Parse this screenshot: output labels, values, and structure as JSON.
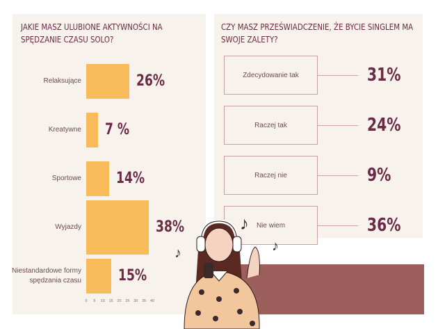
{
  "chart_data": [
    {
      "type": "bar",
      "title": "JAKIE MASZ ULUBIONE AKTYWNOŚCI NA SPĘDZANIE CZASU SOLO?",
      "categories": [
        "Relaksujące",
        "Kreatywne",
        "Sportowe",
        "Wyjazdy",
        "Niestandardowe formy spędzania czasu"
      ],
      "values": [
        26,
        7,
        14,
        38,
        15
      ],
      "value_labels": [
        "26%",
        "7 %",
        "14%",
        "38%",
        "15%"
      ],
      "color": "#f8bb5a",
      "xlim": [
        0,
        40
      ],
      "xticks": [
        0,
        5,
        10,
        15,
        20,
        25,
        30,
        35,
        40
      ]
    },
    {
      "type": "list",
      "title": "CZY MASZ PRZEŚWIADCZENIE, ŻE BYCIE SINGLEM MA SWOJE ZALETY?",
      "categories": [
        "Zdecydowanie tak",
        "Raczej tak",
        "Raczej nie",
        "Nie wiem"
      ],
      "values": [
        31,
        24,
        9,
        36
      ],
      "value_labels": [
        "31%",
        "24%",
        "9%",
        "36%"
      ]
    }
  ]
}
